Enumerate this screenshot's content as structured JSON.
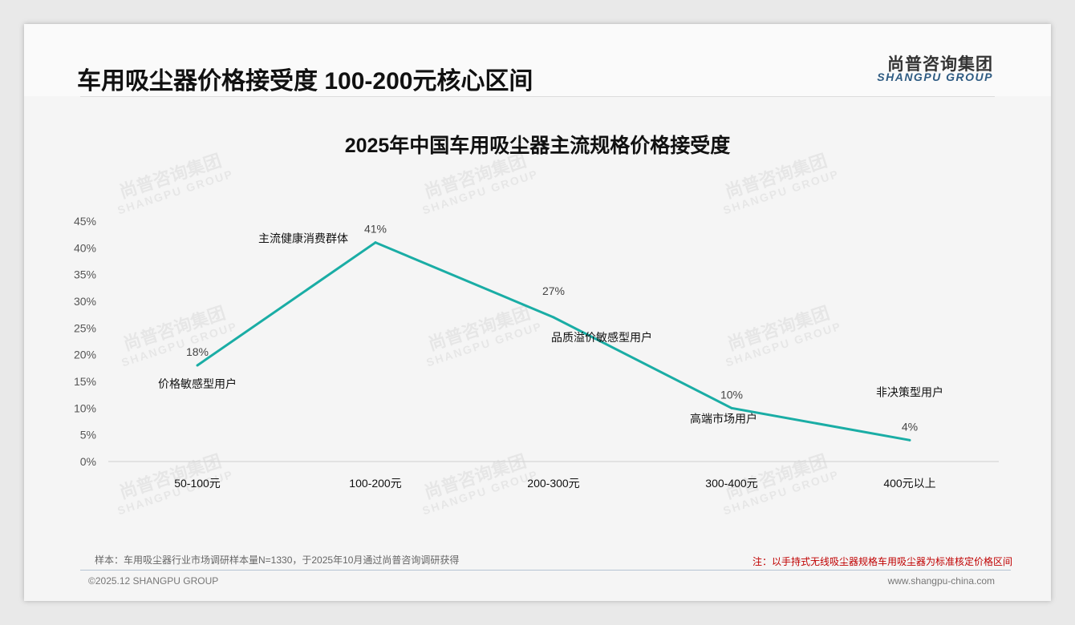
{
  "header": {
    "title": "车用吸尘器价格接受度 100-200元核心区间",
    "logo_cn": "尚普咨询集团",
    "logo_en": "SHANGPU GROUP"
  },
  "chart_data": {
    "type": "line",
    "title": "2025年中国车用吸尘器主流规格价格接受度",
    "categories": [
      "50-100元",
      "100-200元",
      "200-300元",
      "300-400元",
      "400元以上"
    ],
    "values": [
      18,
      41,
      27,
      10,
      4
    ],
    "data_labels": [
      "18%",
      "41%",
      "27%",
      "10%",
      "4%"
    ],
    "annotations": [
      "价格敏感型用户",
      "主流健康消费群体",
      "品质溢价敏感型用户",
      "高端市场用户",
      "非决策型用户"
    ],
    "yticks": [
      "0%",
      "5%",
      "10%",
      "15%",
      "20%",
      "25%",
      "30%",
      "35%",
      "40%",
      "45%"
    ],
    "ylim": [
      0,
      45
    ],
    "line_color": "#1aada5",
    "grid": false
  },
  "footer": {
    "sample": "样本：车用吸尘器行业市场调研样本量N=1330，于2025年10月通过尚普咨询调研获得",
    "note": "注：以手持式无线吸尘器规格车用吸尘器为标准核定价格区间",
    "copyright": "©2025.12 SHANGPU GROUP",
    "url": "www.shangpu-china.com"
  }
}
